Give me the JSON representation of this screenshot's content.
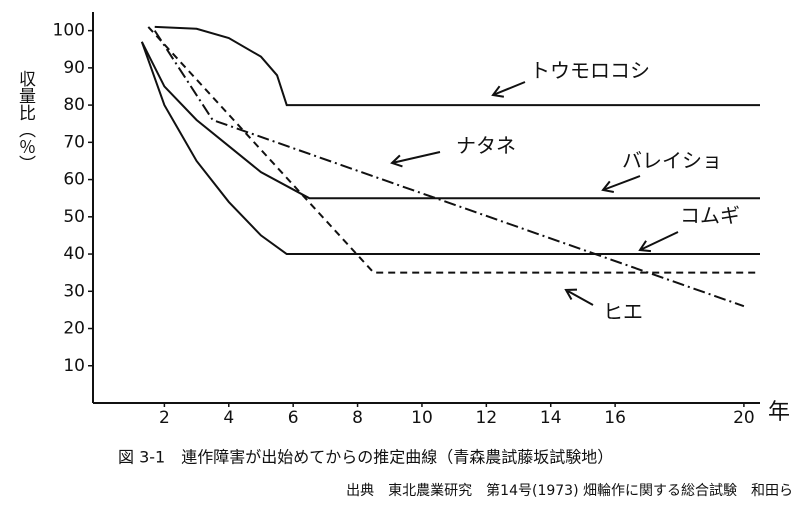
{
  "chart_data": {
    "type": "line",
    "y_label": "収量比（％）",
    "x_label": "年",
    "caption": "図 3-1　連作障害が出始めてからの推定曲線（青森農試藤坂試験地）",
    "source": "出典　東北農業研究　第14号(1973) 畑輪作に関する総合試験　和田ら",
    "xlim": [
      0,
      20.5
    ],
    "ylim": [
      0,
      105
    ],
    "xticks": [
      2,
      4,
      6,
      8,
      10,
      12,
      14,
      16,
      20
    ],
    "yticks": [
      10,
      20,
      30,
      40,
      50,
      60,
      70,
      80,
      90,
      100
    ],
    "series": [
      {
        "name": "トウモロコシ",
        "color": "#111111",
        "dash": "solid",
        "x": [
          1.7,
          3,
          4,
          5,
          5.5,
          5.8,
          6,
          20.5
        ],
        "values": [
          101,
          100.5,
          98,
          93,
          88,
          80,
          80,
          80
        ]
      },
      {
        "name": "ナタネ",
        "color": "#111111",
        "dash": "dashdot",
        "x": [
          1.7,
          3.5,
          20
        ],
        "values": [
          100,
          76,
          26
        ]
      },
      {
        "name": "バレイショ",
        "color": "#111111",
        "dash": "solid",
        "x": [
          1.3,
          2,
          3,
          4,
          5,
          6.5,
          20.5
        ],
        "values": [
          97,
          85,
          76,
          69,
          62,
          55,
          55
        ]
      },
      {
        "name": "コムギ",
        "color": "#111111",
        "dash": "solid",
        "x": [
          1.3,
          2,
          3,
          4,
          5,
          5.8,
          20.5
        ],
        "values": [
          97,
          80,
          65,
          54,
          45,
          40,
          40
        ]
      },
      {
        "name": "ヒエ",
        "color": "#111111",
        "dash": "dashed",
        "x": [
          1.5,
          8.5,
          20.5
        ],
        "values": [
          101,
          35,
          35
        ]
      }
    ]
  }
}
